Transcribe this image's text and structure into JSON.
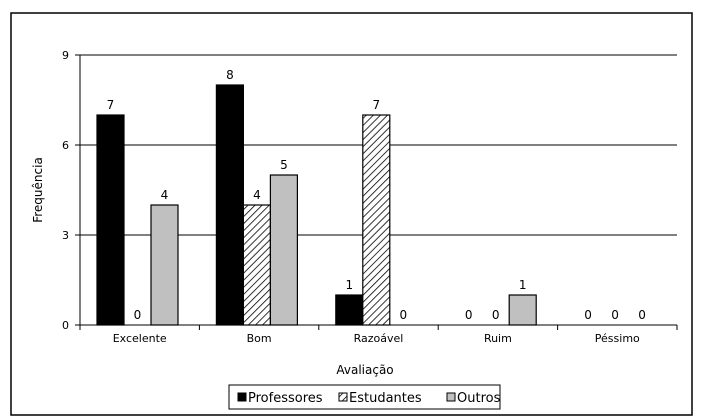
{
  "chart_data": {
    "type": "bar",
    "title": "",
    "xlabel": "Avaliação",
    "ylabel": "Frequência",
    "ylim": [
      0,
      9
    ],
    "yticks": [
      0,
      3,
      6,
      9
    ],
    "grid": true,
    "legend_position": "bottom",
    "categories": [
      "Excelente",
      "Bom",
      "Razoável",
      "Ruim",
      "Péssimo"
    ],
    "series": [
      {
        "name": "Professores",
        "values": [
          7,
          8,
          1,
          0,
          0
        ],
        "fill": "solid",
        "color": "#000000"
      },
      {
        "name": "Estudantes",
        "values": [
          0,
          4,
          7,
          0,
          0
        ],
        "fill": "hatched",
        "color": "#ffffff"
      },
      {
        "name": "Outros",
        "values": [
          4,
          5,
          0,
          1,
          0
        ],
        "fill": "solid",
        "color": "#c0c0c0"
      }
    ]
  }
}
